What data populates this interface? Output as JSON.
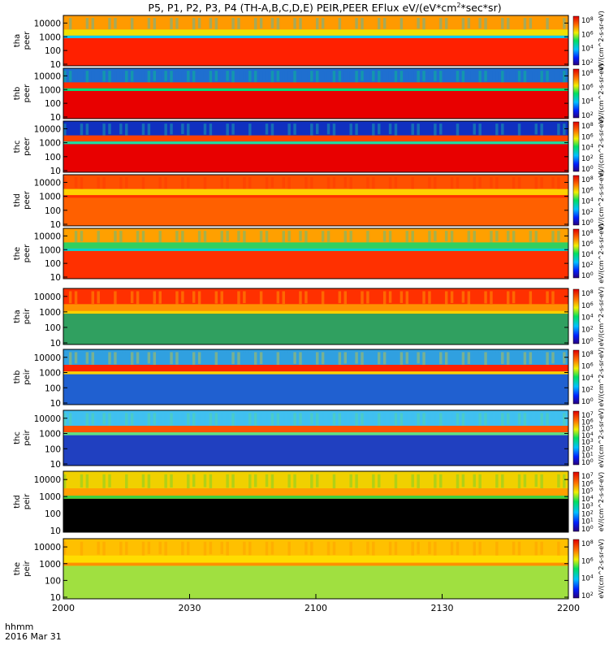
{
  "chart_data": {
    "type": "heatmap",
    "title": "P5, P1, P2, P3, P4 (TH-A,B,C,D,E) PEIR,PEER EFlux eV/(eV*cm",
    "title_sup": "2",
    "title_end": "*sec*sr)",
    "xaxis": {
      "ticks": [
        "2000",
        "2030",
        "2100",
        "2130",
        "2200"
      ],
      "corner_label_1": "hhmm",
      "corner_label_2": "2016 Mar 31"
    },
    "yaxis_ticks": [
      "10",
      "100",
      "1000",
      "10000"
    ],
    "colorbar_unit": "eV/(cm^2-s-sr-eV)",
    "panels": [
      {
        "line1": "tha",
        "line2": "peer",
        "cb_ticks": [
          "10^8",
          "10^6",
          "10^4",
          "10^2"
        ],
        "colors": {
          "top": "#ff9a00",
          "mid": "#f0e000",
          "low": "#ff2000",
          "band": "#00c8ff"
        }
      },
      {
        "line1": "thb",
        "line2": "peer",
        "cb_ticks": [
          "10^8",
          "10^6",
          "10^4",
          "10^2"
        ],
        "colors": {
          "top": "#1f6fd0",
          "mid": "#ff3000",
          "low": "#e80000",
          "band": "#00e070"
        }
      },
      {
        "line1": "thc",
        "line2": "peer",
        "cb_ticks": [
          "10^8",
          "10^6",
          "10^4",
          "10^2",
          "10^0"
        ],
        "colors": {
          "top": "#1030c0",
          "mid": "#ff4000",
          "low": "#e80000",
          "band": "#20e0a0"
        }
      },
      {
        "line1": "thd",
        "line2": "peer",
        "cb_ticks": [
          "10^8",
          "10^6",
          "10^4",
          "10^2",
          "10^0"
        ],
        "colors": {
          "top": "#ff5000",
          "mid": "#ffd000",
          "low": "#ff6000",
          "band": "#ff3000"
        }
      },
      {
        "line1": "the",
        "line2": "peer",
        "cb_ticks": [
          "10^8",
          "10^6",
          "10^4",
          "10^2",
          "10^0"
        ],
        "colors": {
          "top": "#ffa000",
          "mid": "#30d060",
          "low": "#ff3000",
          "band": "#00d0d0"
        }
      },
      {
        "line1": "tha",
        "line2": "peir",
        "cb_ticks": [
          "10^8",
          "10^6",
          "10^4",
          "10^2",
          "10^0"
        ],
        "colors": {
          "top": "#ff3000",
          "mid": "#ff9000",
          "low": "#30a060",
          "band": "#ffd000"
        }
      },
      {
        "line1": "thb",
        "line2": "peir",
        "cb_ticks": [
          "10^8",
          "10^6",
          "10^4",
          "10^2",
          "10^0"
        ],
        "colors": {
          "top": "#30a0e0",
          "mid": "#ff2000",
          "low": "#2060d0",
          "band": "#ffd000"
        }
      },
      {
        "line1": "thc",
        "line2": "peir",
        "cb_ticks": [
          "10^7",
          "10^6",
          "10^5",
          "10^4",
          "10^3",
          "10^2",
          "10^1",
          "10^0"
        ],
        "colors": {
          "top": "#40c0f0",
          "mid": "#ff5000",
          "low": "#2040c0",
          "band": "#60e080"
        }
      },
      {
        "line1": "thd",
        "line2": "peir",
        "cb_ticks": [
          "10^7",
          "10^6",
          "10^5",
          "10^4",
          "10^3",
          "10^2",
          "10^1",
          "10^0"
        ],
        "colors": {
          "top": "#f0d000",
          "mid": "#ffa000",
          "low": "#000000",
          "band": "#40d040"
        }
      },
      {
        "line1": "the",
        "line2": "peir",
        "cb_ticks": [
          "10^8",
          "10^6",
          "10^4",
          "10^2"
        ],
        "colors": {
          "top": "#ffc000",
          "mid": "#ffdd00",
          "low": "#a0e040",
          "band": "#ff9000"
        }
      }
    ]
  }
}
